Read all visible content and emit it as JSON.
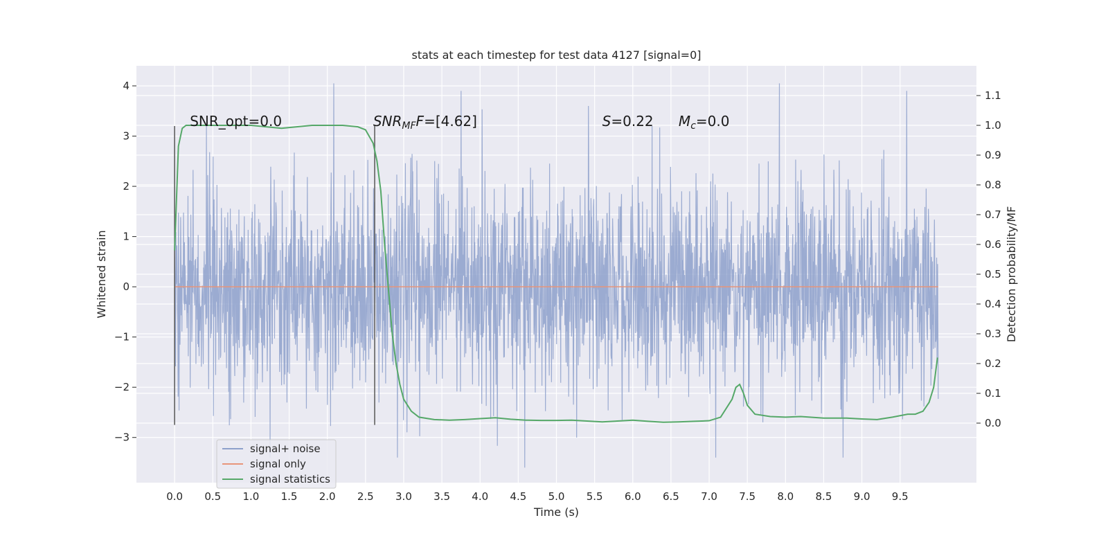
{
  "chart_data": {
    "type": "line",
    "title": "stats at each timestep for test data 4127 [signal=0]",
    "xlabel": "Time (s)",
    "ylabel_left": "Whitened strain",
    "ylabel_right": "Detection probability/MF",
    "xlim": [
      -0.5,
      10.5
    ],
    "ylim_left": [
      -3.9,
      4.4
    ],
    "ylim_right": [
      -0.2,
      1.2
    ],
    "x_ticks": [
      "0.0",
      "0.5",
      "1.0",
      "1.5",
      "2.0",
      "2.5",
      "3.0",
      "3.5",
      "4.0",
      "4.5",
      "5.0",
      "5.5",
      "6.0",
      "6.5",
      "7.0",
      "7.5",
      "8.0",
      "8.5",
      "9.0",
      "9.5"
    ],
    "y_ticks_left": [
      "−3",
      "−2",
      "−1",
      "0",
      "1",
      "2",
      "3",
      "4"
    ],
    "y_ticks_right": [
      "0.0",
      "0.1",
      "0.2",
      "0.3",
      "0.4",
      "0.5",
      "0.6",
      "0.7",
      "0.8",
      "0.9",
      "1.0",
      "1.1"
    ],
    "grid": true,
    "legend_position": "lower-left",
    "annotations": {
      "snr_opt": "SNR_opt=0.0",
      "snr_mf_base": "SNR",
      "snr_mf_sub": "MF",
      "snr_mf_value": "=[4.62]",
      "s_var": "S",
      "s_value": "=0.22",
      "mc_var": "M",
      "mc_sub": "c",
      "mc_value": "=0.0"
    },
    "vertical_markers": [
      0.0,
      2.62
    ],
    "series": [
      {
        "name": "signal+ noise",
        "color": "#8da0cb",
        "axis": "left",
        "x_range": [
          0.0,
          10.0
        ],
        "typical_amplitude": 1.0,
        "peak_values": [
          3.2,
          -3.4,
          4.05,
          -3.4,
          3.9,
          -3.6,
          3.6
        ]
      },
      {
        "name": "signal only",
        "color": "#e8957a",
        "axis": "left",
        "x": [
          0.0,
          10.0
        ],
        "y": [
          0.0,
          0.0
        ]
      },
      {
        "name": "signal statistics",
        "color": "#55a868",
        "axis": "right",
        "x": [
          0.0,
          0.05,
          0.1,
          0.15,
          0.2,
          0.4,
          0.6,
          0.8,
          1.0,
          1.2,
          1.4,
          1.6,
          1.8,
          2.0,
          2.2,
          2.4,
          2.5,
          2.6,
          2.65,
          2.7,
          2.75,
          2.8,
          2.85,
          2.9,
          2.95,
          3.0,
          3.1,
          3.2,
          3.4,
          3.6,
          3.8,
          4.0,
          4.2,
          4.4,
          4.6,
          4.8,
          5.0,
          5.2,
          5.4,
          5.6,
          5.8,
          6.0,
          6.2,
          6.4,
          6.6,
          6.8,
          7.0,
          7.15,
          7.25,
          7.3,
          7.35,
          7.4,
          7.45,
          7.5,
          7.6,
          7.8,
          8.0,
          8.2,
          8.5,
          8.8,
          9.0,
          9.2,
          9.4,
          9.6,
          9.7,
          9.8,
          9.88,
          9.94,
          9.99
        ],
        "y": [
          0.58,
          0.93,
          0.99,
          1.0,
          1.0,
          1.0,
          1.0,
          1.0,
          1.0,
          0.995,
          0.99,
          0.995,
          1.0,
          1.0,
          1.0,
          0.995,
          0.985,
          0.94,
          0.88,
          0.78,
          0.6,
          0.45,
          0.3,
          0.2,
          0.13,
          0.08,
          0.04,
          0.02,
          0.012,
          0.01,
          0.012,
          0.015,
          0.018,
          0.013,
          0.01,
          0.009,
          0.009,
          0.01,
          0.007,
          0.004,
          0.007,
          0.01,
          0.006,
          0.003,
          0.004,
          0.006,
          0.008,
          0.02,
          0.06,
          0.08,
          0.12,
          0.13,
          0.1,
          0.06,
          0.03,
          0.022,
          0.02,
          0.022,
          0.017,
          0.017,
          0.014,
          0.012,
          0.02,
          0.03,
          0.03,
          0.04,
          0.07,
          0.12,
          0.22
        ]
      }
    ]
  }
}
